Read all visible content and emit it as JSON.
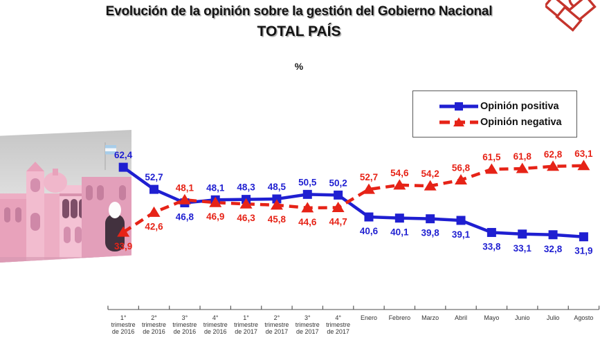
{
  "title": {
    "line1": "Evolución de la opinión sobre la gestión del Gobierno Nacional",
    "line2": "TOTAL PAÍS"
  },
  "unit_label": "%",
  "legend": {
    "items": [
      {
        "label": "Opinión positiva",
        "color": "#1F1FD1",
        "marker": "square"
      },
      {
        "label": "Opinión negativa",
        "color": "#E62317",
        "marker": "triangle"
      }
    ]
  },
  "colors": {
    "positive": "#1F1FD1",
    "negative": "#E62317",
    "axis_line": "#A6A6A6",
    "tick": "#595959",
    "axis_text": "#333333",
    "logo_red": "#C5342C"
  },
  "chart_data": {
    "type": "line",
    "title": "Evolución de la opinión sobre la gestión del Gobierno Nacional - TOTAL PAÍS",
    "ylabel": "%",
    "ylim": [
      0,
      100
    ],
    "grid": false,
    "legend_position": "top-right",
    "categories": [
      "1°\ntrimestre\nde 2016",
      "2°\ntrimestre\nde 2016",
      "3°\ntrimestre\nde 2016",
      "4°\ntrimestre\nde 2016",
      "1°\ntrimestre\nde 2017",
      "2°\ntrimestre\nde 2017",
      "3°\ntrimestre\nde 2017",
      "4°\ntrimestre\nde 2017",
      "Enero",
      "Febrero",
      "Marzo",
      "Abril",
      "Mayo",
      "Junio",
      "Julio",
      "Agosto"
    ],
    "series": [
      {
        "name": "Opinión positiva",
        "color": "#1F1FD1",
        "marker": "square",
        "line_style": "solid",
        "values": [
          62.4,
          52.7,
          46.8,
          48.1,
          48.3,
          48.5,
          50.5,
          50.2,
          40.6,
          40.1,
          39.8,
          39.1,
          33.8,
          33.1,
          32.8,
          31.9
        ]
      },
      {
        "name": "Opinión negativa",
        "color": "#E62317",
        "marker": "triangle",
        "line_style": "dashed",
        "values": [
          33.9,
          42.6,
          48.1,
          46.9,
          46.3,
          45.8,
          44.6,
          44.7,
          52.7,
          54.6,
          54.2,
          56.8,
          61.5,
          61.8,
          62.8,
          63.1
        ]
      }
    ]
  }
}
